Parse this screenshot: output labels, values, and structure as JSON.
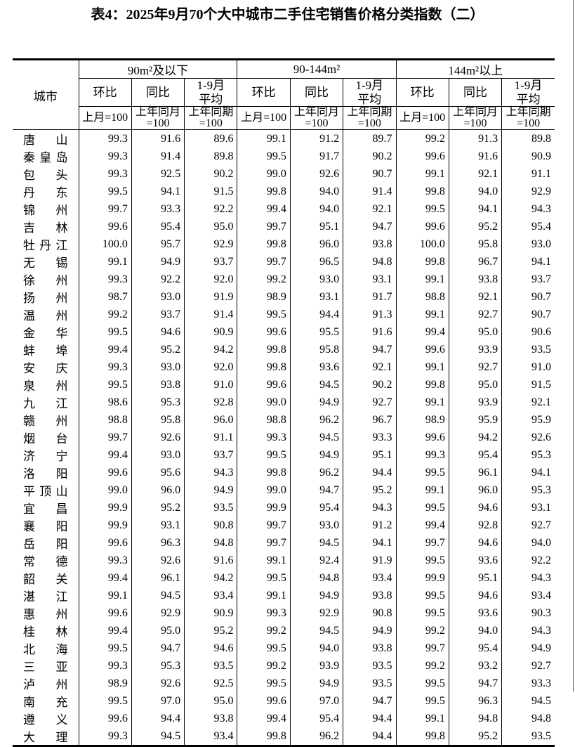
{
  "page": {
    "title": "表4：2025年9月70个大中城市二手住宅销售价格分类指数（二）",
    "edge_line_color": "#555555"
  },
  "table": {
    "city_header": "城市",
    "groups": [
      {
        "label": "90m²及以下",
        "columns": [
          {
            "label": "环比",
            "base": "上月=100"
          },
          {
            "label": "同比",
            "base": "上年同月\n=100"
          },
          {
            "label": "1-9月\n平均",
            "base": "上年同期\n=100"
          }
        ]
      },
      {
        "label": "90-144m²",
        "columns": [
          {
            "label": "环比",
            "base": "上月=100"
          },
          {
            "label": "同比",
            "base": "上年同月\n=100"
          },
          {
            "label": "1-9月\n平均",
            "base": "上年同期\n=100"
          }
        ]
      },
      {
        "label": "144m²以上",
        "columns": [
          {
            "label": "环比",
            "base": "上月=100"
          },
          {
            "label": "同比",
            "base": "上年同月\n=100"
          },
          {
            "label": "1-9月\n平均",
            "base": "上年同期\n=100"
          }
        ]
      }
    ],
    "rows": [
      {
        "city": "唐山",
        "values": [
          "99.3",
          "91.6",
          "89.6",
          "99.1",
          "91.2",
          "89.7",
          "99.2",
          "91.3",
          "89.8"
        ]
      },
      {
        "city": "秦皇岛",
        "values": [
          "99.3",
          "91.4",
          "89.8",
          "99.5",
          "91.7",
          "90.2",
          "99.6",
          "91.6",
          "90.9"
        ]
      },
      {
        "city": "包头",
        "values": [
          "99.3",
          "92.5",
          "90.2",
          "99.0",
          "92.6",
          "90.7",
          "99.1",
          "92.1",
          "91.1"
        ]
      },
      {
        "city": "丹东",
        "values": [
          "99.5",
          "94.1",
          "91.5",
          "99.8",
          "94.0",
          "91.4",
          "99.8",
          "94.0",
          "92.9"
        ]
      },
      {
        "city": "锦州",
        "values": [
          "99.7",
          "93.3",
          "92.2",
          "99.4",
          "94.0",
          "92.1",
          "99.5",
          "94.1",
          "94.3"
        ]
      },
      {
        "city": "吉林",
        "values": [
          "99.6",
          "95.4",
          "95.0",
          "99.7",
          "95.1",
          "94.7",
          "99.6",
          "95.2",
          "95.4"
        ]
      },
      {
        "city": "牡丹江",
        "values": [
          "100.0",
          "95.7",
          "92.9",
          "99.8",
          "96.0",
          "93.8",
          "100.0",
          "95.8",
          "93.0"
        ]
      },
      {
        "city": "无锡",
        "values": [
          "99.1",
          "94.9",
          "93.7",
          "99.7",
          "96.5",
          "94.8",
          "99.8",
          "96.7",
          "94.1"
        ]
      },
      {
        "city": "徐州",
        "values": [
          "99.3",
          "92.2",
          "92.0",
          "99.2",
          "93.0",
          "93.1",
          "99.1",
          "93.8",
          "93.7"
        ]
      },
      {
        "city": "扬州",
        "values": [
          "98.7",
          "93.0",
          "91.9",
          "98.9",
          "93.1",
          "91.7",
          "98.8",
          "92.1",
          "90.7"
        ]
      },
      {
        "city": "温州",
        "values": [
          "99.2",
          "93.7",
          "91.4",
          "99.5",
          "94.4",
          "91.3",
          "99.1",
          "92.7",
          "90.7"
        ]
      },
      {
        "city": "金华",
        "values": [
          "99.5",
          "94.6",
          "90.9",
          "99.6",
          "95.5",
          "91.6",
          "99.4",
          "95.0",
          "90.6"
        ]
      },
      {
        "city": "蚌埠",
        "values": [
          "99.4",
          "95.2",
          "94.2",
          "99.8",
          "95.8",
          "94.7",
          "99.6",
          "93.9",
          "93.5"
        ]
      },
      {
        "city": "安庆",
        "values": [
          "99.3",
          "93.0",
          "92.0",
          "99.8",
          "93.6",
          "92.1",
          "99.1",
          "92.7",
          "91.0"
        ]
      },
      {
        "city": "泉州",
        "values": [
          "99.5",
          "93.8",
          "91.0",
          "99.6",
          "94.5",
          "90.2",
          "99.8",
          "95.0",
          "91.5"
        ]
      },
      {
        "city": "九江",
        "values": [
          "98.6",
          "95.3",
          "92.8",
          "99.0",
          "94.9",
          "92.7",
          "99.1",
          "93.9",
          "92.1"
        ]
      },
      {
        "city": "赣州",
        "values": [
          "98.8",
          "95.8",
          "96.0",
          "98.8",
          "96.2",
          "96.7",
          "98.9",
          "95.9",
          "95.9"
        ]
      },
      {
        "city": "烟台",
        "values": [
          "99.7",
          "92.6",
          "91.1",
          "99.3",
          "94.5",
          "93.3",
          "99.6",
          "94.2",
          "92.6"
        ]
      },
      {
        "city": "济宁",
        "values": [
          "99.4",
          "93.0",
          "93.7",
          "99.5",
          "94.9",
          "95.1",
          "99.3",
          "95.4",
          "95.3"
        ]
      },
      {
        "city": "洛阳",
        "values": [
          "99.6",
          "95.6",
          "94.3",
          "99.8",
          "96.2",
          "94.4",
          "99.5",
          "96.1",
          "94.1"
        ]
      },
      {
        "city": "平顶山",
        "values": [
          "99.0",
          "96.0",
          "94.9",
          "99.0",
          "94.7",
          "95.2",
          "99.1",
          "96.0",
          "95.3"
        ]
      },
      {
        "city": "宜昌",
        "values": [
          "99.9",
          "95.2",
          "93.5",
          "99.9",
          "95.4",
          "94.3",
          "99.5",
          "94.6",
          "93.1"
        ]
      },
      {
        "city": "襄阳",
        "values": [
          "99.9",
          "93.1",
          "90.8",
          "99.7",
          "93.0",
          "91.2",
          "99.4",
          "92.8",
          "92.7"
        ]
      },
      {
        "city": "岳阳",
        "values": [
          "99.6",
          "96.3",
          "94.8",
          "99.7",
          "94.5",
          "94.1",
          "99.7",
          "94.6",
          "94.0"
        ]
      },
      {
        "city": "常德",
        "values": [
          "99.3",
          "92.6",
          "91.6",
          "99.1",
          "92.4",
          "91.9",
          "99.5",
          "93.6",
          "92.2"
        ]
      },
      {
        "city": "韶关",
        "values": [
          "99.4",
          "96.1",
          "94.2",
          "99.5",
          "94.8",
          "93.4",
          "99.9",
          "95.1",
          "94.3"
        ]
      },
      {
        "city": "湛江",
        "values": [
          "99.1",
          "94.5",
          "93.4",
          "99.1",
          "94.9",
          "93.8",
          "99.5",
          "94.6",
          "93.4"
        ]
      },
      {
        "city": "惠州",
        "values": [
          "99.6",
          "92.9",
          "90.9",
          "99.3",
          "92.9",
          "90.8",
          "99.5",
          "93.6",
          "90.3"
        ]
      },
      {
        "city": "桂林",
        "values": [
          "99.4",
          "95.0",
          "95.2",
          "99.2",
          "94.5",
          "94.9",
          "99.2",
          "94.0",
          "94.3"
        ]
      },
      {
        "city": "北海",
        "values": [
          "99.5",
          "94.7",
          "94.6",
          "99.5",
          "94.0",
          "93.8",
          "99.7",
          "95.4",
          "94.9"
        ]
      },
      {
        "city": "三亚",
        "values": [
          "99.3",
          "95.3",
          "93.5",
          "99.2",
          "93.9",
          "93.5",
          "99.2",
          "93.2",
          "92.7"
        ]
      },
      {
        "city": "泸州",
        "values": [
          "98.9",
          "92.6",
          "92.5",
          "99.5",
          "94.9",
          "93.5",
          "99.5",
          "94.7",
          "93.3"
        ]
      },
      {
        "city": "南充",
        "values": [
          "99.5",
          "97.0",
          "95.0",
          "99.6",
          "97.0",
          "94.7",
          "99.5",
          "96.3",
          "94.5"
        ]
      },
      {
        "city": "遵义",
        "values": [
          "99.6",
          "94.4",
          "93.8",
          "99.4",
          "95.4",
          "94.4",
          "99.1",
          "94.8",
          "94.8"
        ]
      },
      {
        "city": "大理",
        "values": [
          "99.3",
          "94.5",
          "93.4",
          "99.8",
          "96.2",
          "94.4",
          "99.8",
          "95.2",
          "93.5"
        ]
      }
    ]
  }
}
